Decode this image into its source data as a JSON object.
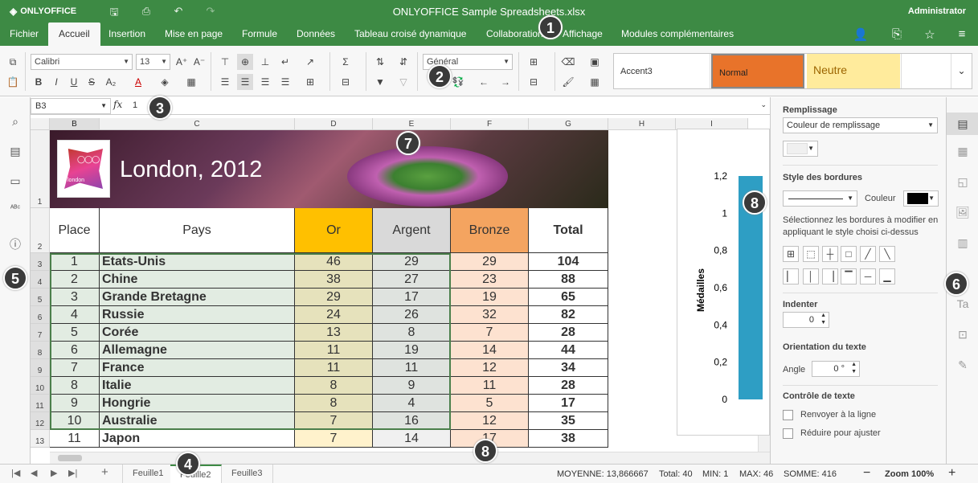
{
  "app": {
    "brand": "ONLYOFFICE",
    "title": "ONLYOFFICE Sample Spreadsheets.xlsx",
    "user": "Administrator"
  },
  "tabs": [
    "Fichier",
    "Accueil",
    "Insertion",
    "Mise en page",
    "Formule",
    "Données",
    "Tableau croisé dynamique",
    "Collaboration",
    "Affichage",
    "Modules complémentaires"
  ],
  "toolbar": {
    "font": "Calibri",
    "size": "13",
    "number_format": "Général"
  },
  "styles": {
    "accent3": "Accent3",
    "normal": "Normal",
    "neutre": "Neutre",
    "normal_color": "#e8732a",
    "neutre_color": "#ffeb9c"
  },
  "formula": {
    "name_box": "B3",
    "fx": "fx",
    "value": "1"
  },
  "columns": [
    "B",
    "C",
    "D",
    "E",
    "F",
    "G",
    "H",
    "I"
  ],
  "rows": [
    "1",
    "2",
    "3",
    "4",
    "5",
    "6",
    "7",
    "8",
    "9",
    "10",
    "11",
    "12",
    "13"
  ],
  "banner": {
    "title": "London, 2012",
    "logo_text": "london"
  },
  "headers": {
    "place": "Place",
    "pays": "Pays",
    "or": "Or",
    "argent": "Argent",
    "bronze": "Bronze",
    "total": "Total"
  },
  "data": [
    {
      "place": "1",
      "pays": "Etats-Unis",
      "or": "46",
      "argent": "29",
      "bronze": "29",
      "total": "104"
    },
    {
      "place": "2",
      "pays": "Chine",
      "or": "38",
      "argent": "27",
      "bronze": "23",
      "total": "88"
    },
    {
      "place": "3",
      "pays": "Grande Bretagne",
      "or": "29",
      "argent": "17",
      "bronze": "19",
      "total": "65"
    },
    {
      "place": "4",
      "pays": "Russie",
      "or": "24",
      "argent": "26",
      "bronze": "32",
      "total": "82"
    },
    {
      "place": "5",
      "pays": "Corée",
      "or": "13",
      "argent": "8",
      "bronze": "7",
      "total": "28"
    },
    {
      "place": "6",
      "pays": "Allemagne",
      "or": "11",
      "argent": "19",
      "bronze": "14",
      "total": "44"
    },
    {
      "place": "7",
      "pays": "France",
      "or": "11",
      "argent": "11",
      "bronze": "12",
      "total": "34"
    },
    {
      "place": "8",
      "pays": "Italie",
      "or": "8",
      "argent": "9",
      "bronze": "11",
      "total": "28"
    },
    {
      "place": "9",
      "pays": "Hongrie",
      "or": "8",
      "argent": "4",
      "bronze": "5",
      "total": "17"
    },
    {
      "place": "10",
      "pays": "Australie",
      "or": "7",
      "argent": "16",
      "bronze": "12",
      "total": "35"
    },
    {
      "place": "11",
      "pays": "Japon",
      "or": "7",
      "argent": "14",
      "bronze": "17",
      "total": "38"
    }
  ],
  "chart": {
    "ylabel": "Médailles",
    "ticks": [
      "1,2",
      "1",
      "0,8",
      "0,6",
      "0,4",
      "0,2",
      "0"
    ]
  },
  "panel": {
    "fill_label": "Remplissage",
    "fill_select": "Couleur de remplissage",
    "border_style_label": "Style des bordures",
    "border_color_label": "Couleur",
    "border_hint": "Sélectionnez les bordures à modifier en appliquant le style choisi ci-dessus",
    "indent_label": "Indenter",
    "indent_value": "0",
    "orientation_label": "Orientation du texte",
    "angle_label": "Angle",
    "angle_value": "0 °",
    "text_control_label": "Contrôle de texte",
    "wrap_label": "Renvoyer à la ligne",
    "shrink_label": "Réduire pour ajuster"
  },
  "sheets": [
    "Feuille1",
    "Feuille2",
    "Feuille3"
  ],
  "status": {
    "moyenne": "MOYENNE: 13,866667",
    "total": "Total: 40",
    "min": "MIN: 1",
    "max": "MAX: 46",
    "somme": "SOMME: 416",
    "zoom": "Zoom 100%"
  },
  "callouts": [
    "1",
    "2",
    "3",
    "4",
    "5",
    "6",
    "7",
    "8",
    "8"
  ]
}
